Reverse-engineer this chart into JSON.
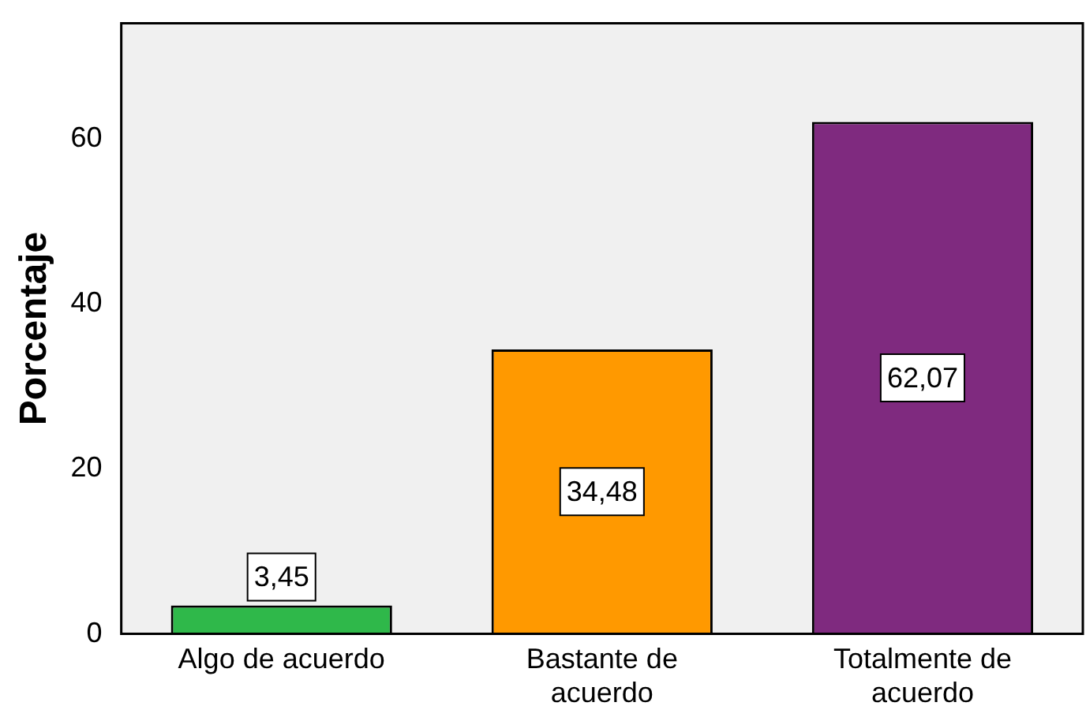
{
  "chart_data": {
    "type": "bar",
    "ylabel": "Porcentaje",
    "categories": [
      "Algo de acuerdo",
      "Bastante de acuerdo",
      "Totalmente de acuerdo"
    ],
    "values": [
      3.45,
      34.48,
      62.07
    ],
    "colors": [
      "#2fb84a",
      "#ff9900",
      "#7f2a7f"
    ],
    "value_labels": [
      "3,45",
      "34,48",
      "62,07"
    ],
    "ylim": [
      0,
      74
    ],
    "yticks": [
      0,
      20,
      40,
      60
    ],
    "grid": false,
    "legend": false
  }
}
